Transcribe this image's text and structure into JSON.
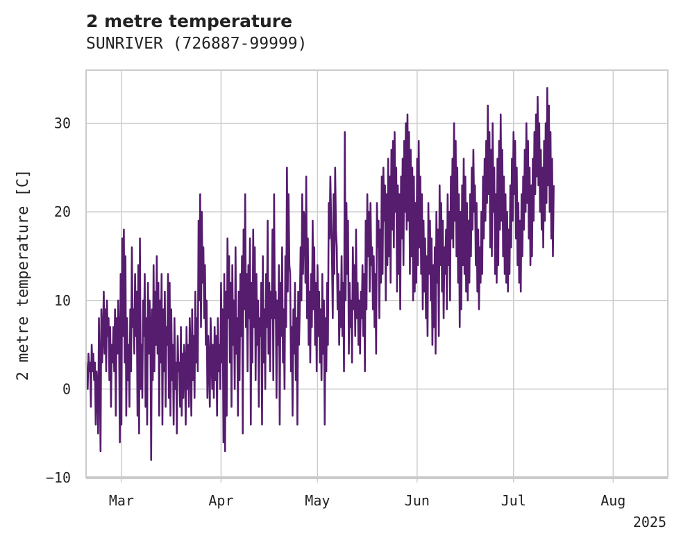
{
  "chart_data": {
    "type": "line",
    "title": "2 metre temperature",
    "subtitle": "SUNRIVER (726887-99999)",
    "ylabel": "2 metre temperature [C]",
    "xlabel": "",
    "year_label": "2025",
    "x_range": [
      "2025-02-18",
      "2025-08-18"
    ],
    "ylim": [
      -10,
      36
    ],
    "y_ticks": [
      -10,
      0,
      10,
      20,
      30
    ],
    "x_ticks": [
      {
        "date": "2025-03-01",
        "label": "Mar"
      },
      {
        "date": "2025-04-01",
        "label": "Apr"
      },
      {
        "date": "2025-05-01",
        "label": "May"
      },
      {
        "date": "2025-06-01",
        "label": "Jun"
      },
      {
        "date": "2025-07-01",
        "label": "Jul"
      },
      {
        "date": "2025-08-01",
        "label": "Aug"
      }
    ],
    "grid": true,
    "line_color": "#561c6e",
    "series": [
      {
        "x_start": "2025-02-18T00:00",
        "step_hours": 6,
        "values": [
          3,
          1,
          0,
          4,
          2,
          3,
          -2,
          5,
          2,
          4,
          1,
          3,
          -4,
          2,
          0,
          -5,
          8,
          2,
          -7,
          9,
          3,
          6,
          11,
          4,
          9,
          2,
          10,
          6,
          8,
          1,
          7,
          -2,
          5,
          3,
          7,
          2,
          9,
          -3,
          8,
          4,
          10,
          6,
          -6,
          13,
          -4,
          17,
          6,
          18,
          3,
          15,
          -3,
          8,
          1,
          5,
          -2,
          9,
          2,
          16,
          7,
          9,
          4,
          13,
          6,
          11,
          -3,
          14,
          -5,
          17,
          0,
          5,
          -1,
          10,
          6,
          13,
          -2,
          8,
          -4,
          12,
          4,
          10,
          7,
          -8,
          9,
          1,
          14,
          2,
          11,
          5,
          15,
          4,
          12,
          -3,
          10,
          3,
          13,
          -4,
          9,
          2,
          11,
          -2,
          7,
          5,
          13,
          -1,
          12,
          -3,
          9,
          1,
          5,
          -4,
          8,
          0,
          3,
          -5,
          6,
          2,
          3,
          -2,
          7,
          -3,
          4,
          -1,
          5,
          3,
          -4,
          7,
          0,
          5,
          -2,
          8,
          4,
          -3,
          9,
          1,
          6,
          -1,
          11,
          3,
          8,
          2,
          19,
          10,
          22,
          7,
          20,
          12,
          16,
          8,
          14,
          5,
          10,
          -1,
          6,
          3,
          -2,
          8,
          4,
          0,
          5,
          -1,
          7,
          1,
          6,
          -3,
          8,
          2,
          5,
          0,
          12,
          3,
          9,
          -6,
          13,
          -7,
          11,
          -3,
          17,
          8,
          15,
          3,
          12,
          -2,
          14,
          5,
          10,
          0,
          16,
          4,
          8,
          -3,
          11,
          1,
          13,
          6,
          15,
          -5,
          18,
          9,
          22,
          7,
          13,
          2,
          14,
          8,
          17,
          -4,
          12,
          3,
          18,
          7,
          16,
          1,
          13,
          5,
          10,
          -2,
          8,
          6,
          12,
          -4,
          15,
          3,
          9,
          0,
          13,
          7,
          19,
          4,
          12,
          2,
          11,
          8,
          18,
          1,
          22,
          8,
          11,
          -1,
          10,
          5,
          14,
          -4,
          12,
          6,
          16,
          3,
          9,
          0,
          15,
          7,
          25,
          11,
          22,
          14,
          13,
          2,
          7,
          -3,
          9,
          4,
          12,
          1,
          8,
          -4,
          11,
          5,
          9,
          16,
          10,
          22,
          13,
          20,
          19,
          12,
          24,
          8,
          17,
          5,
          11,
          3,
          13,
          7,
          19,
          9,
          16,
          5,
          12,
          2,
          14,
          6,
          11,
          3,
          9,
          1,
          13,
          4,
          10,
          -4,
          8,
          2,
          12,
          5,
          21,
          17,
          24,
          19,
          15,
          8,
          22,
          13,
          25,
          18,
          16,
          9,
          13,
          5,
          11,
          7,
          15,
          6,
          12,
          2,
          29,
          10,
          21,
          13,
          19,
          4,
          12,
          7,
          10,
          3,
          16,
          9,
          14,
          6,
          18,
          8,
          12,
          5,
          10,
          4,
          11,
          8,
          14,
          6,
          13,
          2,
          19,
          9,
          22,
          15,
          20,
          11,
          21,
          14,
          16,
          9,
          15,
          7,
          13,
          4,
          21,
          16,
          19,
          8,
          18,
          12,
          24,
          13,
          25,
          19,
          23,
          10,
          22,
          14,
          26,
          15,
          24,
          12,
          27,
          18,
          28,
          16,
          29,
          20,
          25,
          11,
          23,
          13,
          22,
          9,
          24,
          17,
          26,
          14,
          28,
          20,
          30,
          18,
          31,
          19,
          29,
          13,
          27,
          15,
          25,
          10,
          24,
          11,
          21,
          12,
          26,
          14,
          28,
          16,
          24,
          13,
          22,
          9,
          19,
          11,
          17,
          8,
          15,
          6,
          21,
          13,
          19,
          10,
          17,
          5,
          14,
          7,
          16,
          4,
          20,
          12,
          18,
          6,
          23,
          14,
          21,
          11,
          19,
          8,
          16,
          13,
          18,
          9,
          22,
          14,
          20,
          10,
          24,
          17,
          26,
          16,
          30,
          19,
          28,
          15,
          25,
          12,
          22,
          7,
          20,
          9,
          23,
          14,
          26,
          13,
          24,
          11,
          21,
          10,
          19,
          12,
          22,
          15,
          25,
          18,
          27,
          20,
          23,
          14,
          21,
          11,
          18,
          9,
          16,
          12,
          20,
          13,
          24,
          17,
          26,
          19,
          28,
          21,
          32,
          22,
          29,
          16,
          27,
          15,
          30,
          20,
          25,
          13,
          22,
          12,
          26,
          14,
          28,
          18,
          31,
          19,
          27,
          15,
          24,
          13,
          22,
          12,
          20,
          11,
          18,
          13,
          23,
          16,
          26,
          19,
          29,
          22,
          28,
          17,
          25,
          14,
          21,
          12,
          19,
          11,
          22,
          15,
          24,
          18,
          27,
          20,
          30,
          21,
          28,
          17,
          25,
          14,
          23,
          15,
          26,
          19,
          29,
          22,
          31,
          24,
          33,
          23,
          30,
          20,
          27,
          18,
          25,
          16,
          28,
          19,
          30,
          21,
          34,
          23,
          32,
          20,
          29,
          17,
          26,
          15,
          23
        ]
      }
    ]
  }
}
